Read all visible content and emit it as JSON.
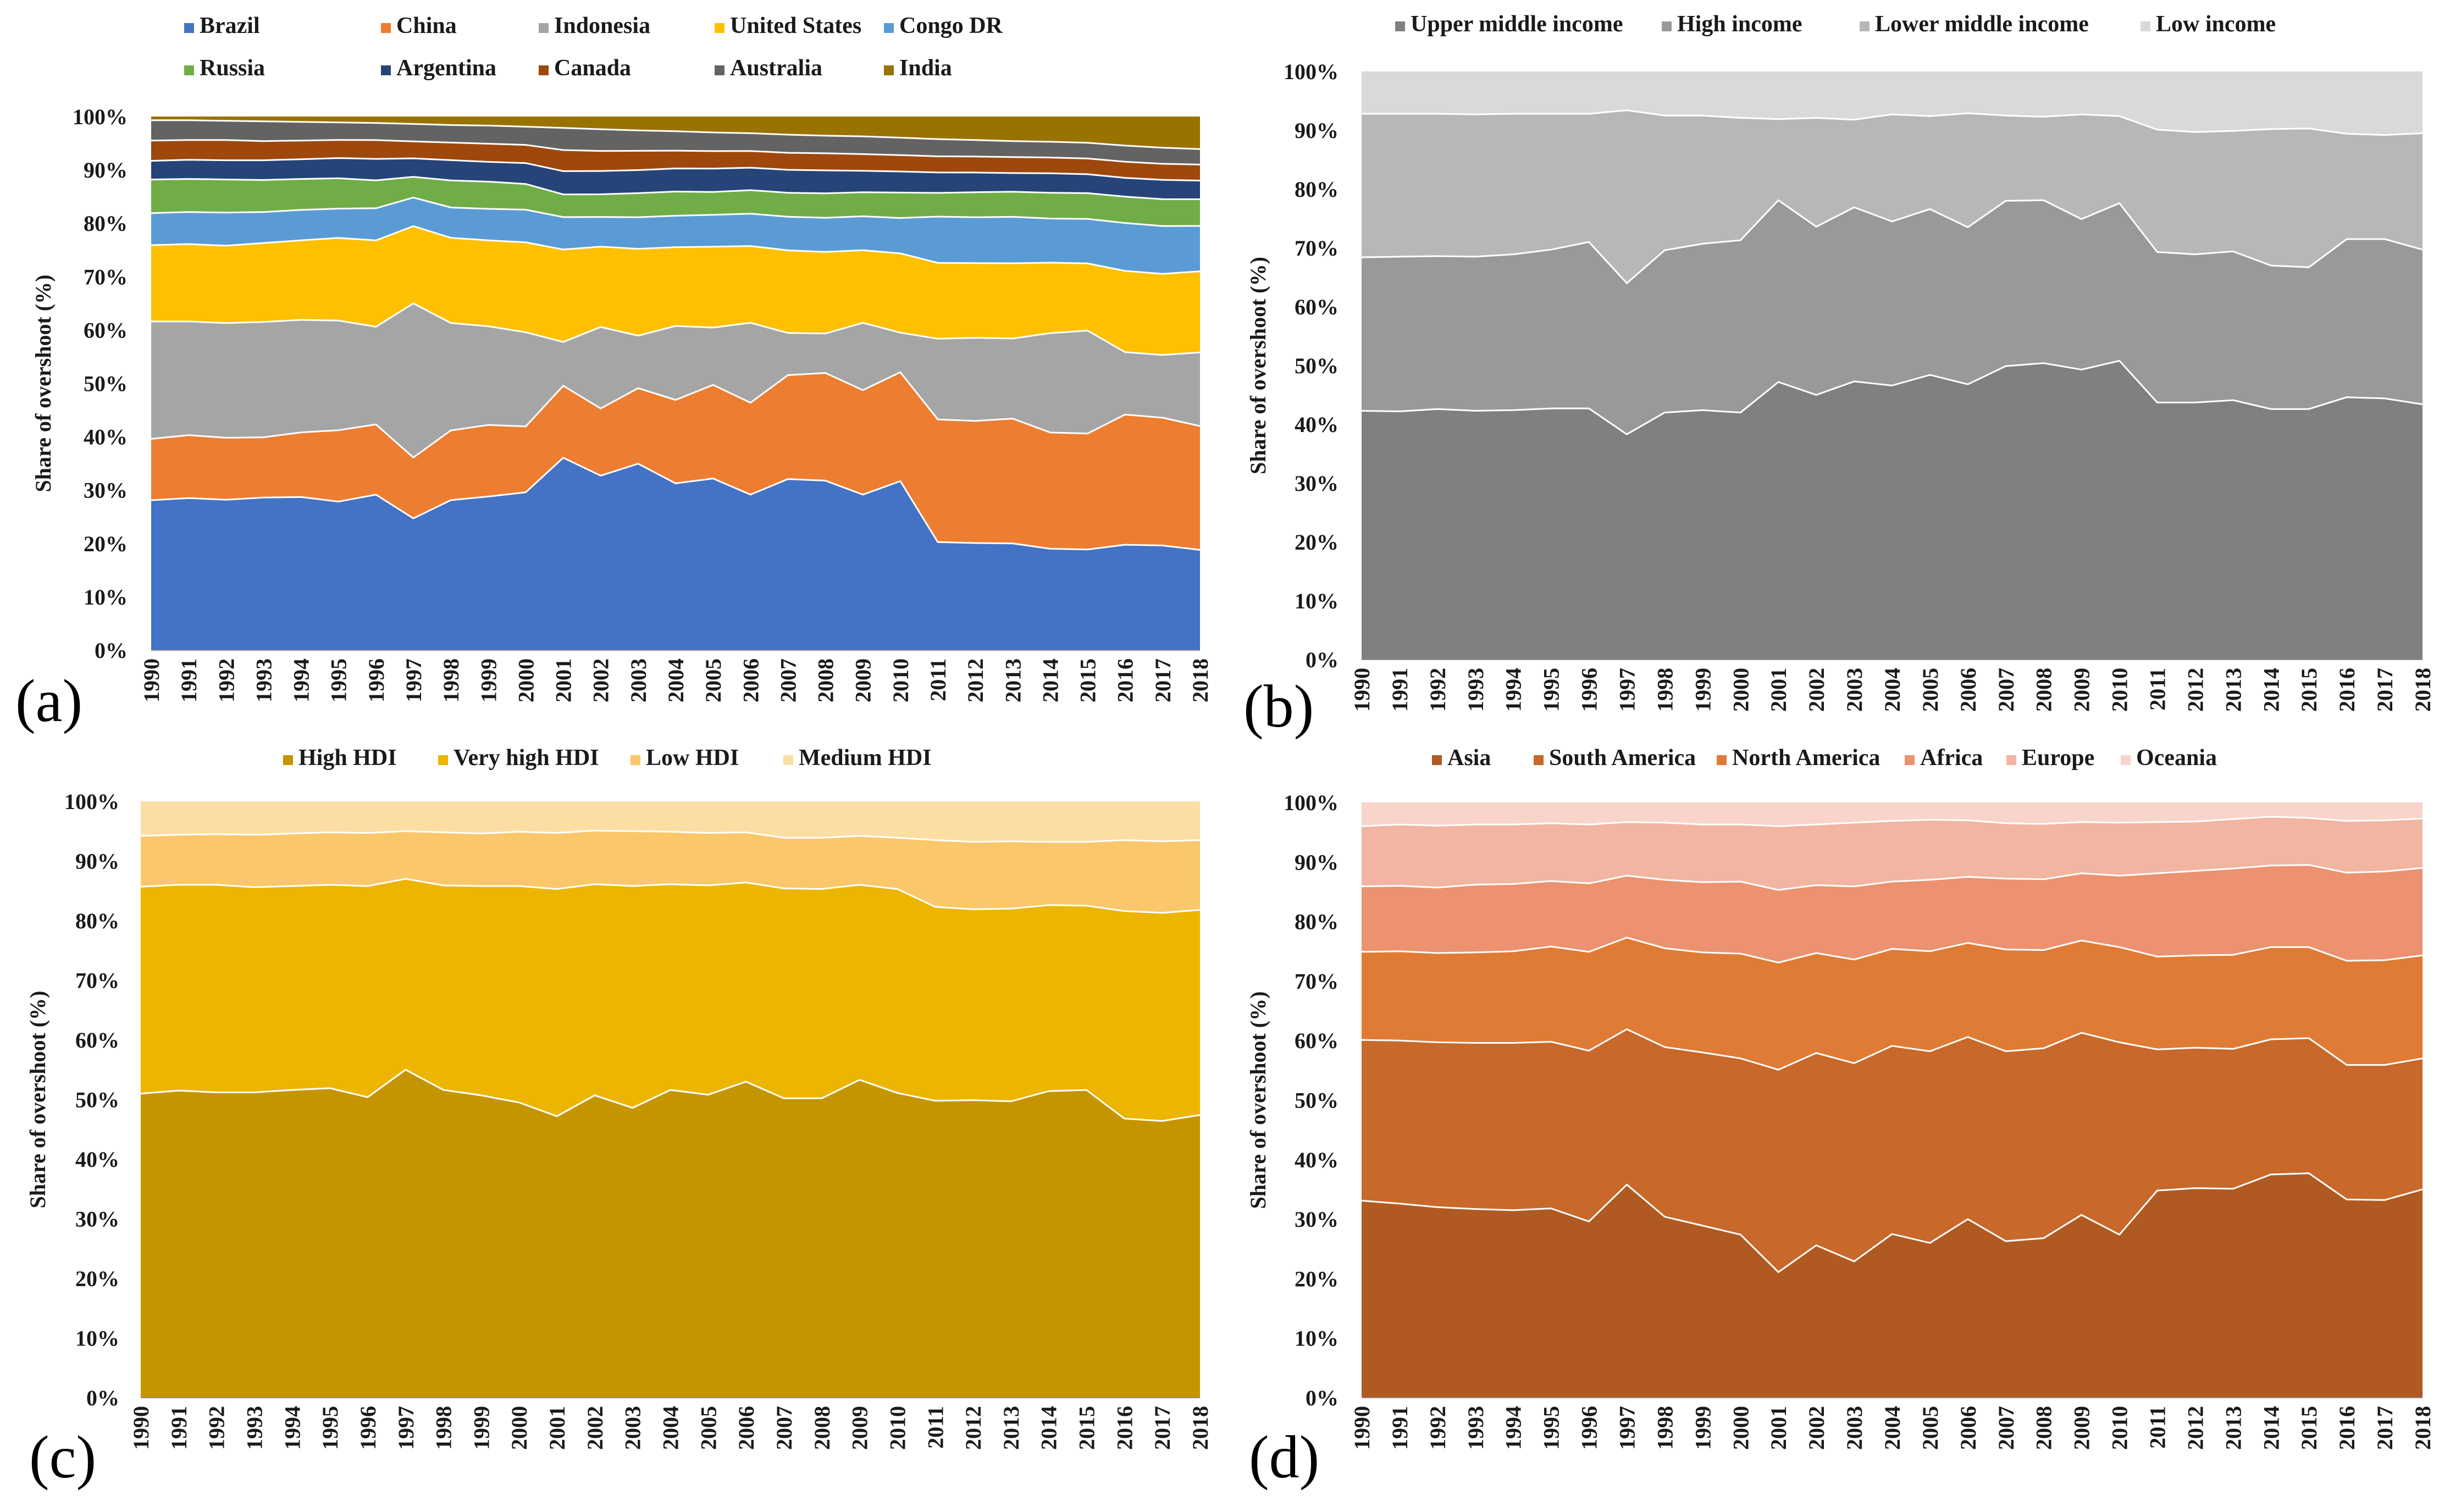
{
  "colors": {
    "divider": "#ffffff",
    "text": "#1a1a1a"
  },
  "chart_data": [
    {
      "id": "a",
      "type": "area",
      "stacked": true,
      "panel_label": "(a)",
      "title": "",
      "xlabel": "",
      "ylabel": "Share of overshoot (%)",
      "ylim": [
        0,
        100
      ],
      "yticks": [
        "0%",
        "10%",
        "20%",
        "30%",
        "40%",
        "50%",
        "60%",
        "70%",
        "80%",
        "90%",
        "100%"
      ],
      "x": [
        1990,
        1991,
        1992,
        1993,
        1994,
        1995,
        1996,
        1997,
        1998,
        1999,
        2000,
        2001,
        2002,
        2003,
        2004,
        2005,
        2006,
        2007,
        2008,
        2009,
        2010,
        2011,
        2012,
        2013,
        2014,
        2015,
        2016,
        2017,
        2018
      ],
      "legend_position": "top",
      "series": [
        {
          "name": "Brazil",
          "color": "#4472C4",
          "values": [
            28.1,
            28.5,
            28.2,
            28.6,
            28.7,
            27.9,
            29.0,
            24.9,
            28.2,
            28.8,
            29.5,
            35.6,
            33.0,
            34.8,
            31.8,
            32.3,
            29.8,
            32.1,
            31.8,
            29.8,
            32.0,
            20.1,
            20.1,
            20.0,
            19.3,
            19.2,
            19.6,
            19.5,
            18.8
          ]
        },
        {
          "name": "China",
          "color": "#ED7D31",
          "values": [
            11.5,
            11.8,
            11.6,
            11.3,
            12.1,
            13.4,
            13.1,
            11.5,
            13.1,
            13.4,
            12.3,
            13.3,
            12.7,
            14.1,
            15.9,
            17.6,
            17.6,
            19.5,
            20.2,
            20.0,
            20.6,
            22.8,
            22.9,
            23.4,
            22.1,
            22.1,
            24.2,
            23.8,
            23.2
          ]
        },
        {
          "name": "Indonesia",
          "color": "#A5A5A5",
          "values": [
            22.0,
            21.3,
            21.5,
            21.6,
            21.1,
            20.6,
            18.2,
            29.1,
            20.2,
            18.5,
            17.6,
            8.1,
            15.4,
            9.8,
            14.1,
            10.8,
            15.3,
            7.9,
            7.4,
            12.9,
            7.5,
            15.0,
            15.6,
            15.0,
            18.9,
            19.6,
            11.6,
            11.7,
            13.8
          ]
        },
        {
          "name": "United States",
          "color": "#FFC000",
          "values": [
            14.3,
            14.5,
            14.5,
            14.8,
            14.9,
            15.5,
            16.1,
            14.6,
            16.0,
            16.1,
            16.8,
            17.1,
            15.2,
            16.2,
            15.0,
            15.2,
            14.7,
            15.5,
            15.3,
            13.9,
            15.0,
            14.1,
            14.0,
            14.1,
            13.4,
            12.8,
            15.1,
            15.1,
            15.2
          ]
        },
        {
          "name": "Congo DR",
          "color": "#5B9BD5",
          "values": [
            6.0,
            6.0,
            6.2,
            5.8,
            5.7,
            5.5,
            6.0,
            5.4,
            5.7,
            5.9,
            6.1,
            6.0,
            5.6,
            5.9,
            6.0,
            6.0,
            6.2,
            6.3,
            6.4,
            6.5,
            6.7,
            8.6,
            8.6,
            8.7,
            8.4,
            8.5,
            8.9,
            8.9,
            8.5
          ]
        },
        {
          "name": "Russia",
          "color": "#70AD47",
          "values": [
            6.3,
            6.2,
            6.2,
            6.0,
            5.8,
            5.7,
            5.2,
            3.9,
            5.1,
            5.1,
            4.8,
            4.2,
            4.3,
            4.5,
            4.6,
            4.3,
            4.5,
            4.5,
            4.6,
            4.6,
            4.8,
            4.4,
            4.7,
            4.7,
            4.9,
            4.9,
            4.9,
            5.0,
            5.0
          ]
        },
        {
          "name": "Argentina",
          "color": "#264478",
          "values": [
            3.5,
            3.6,
            3.6,
            3.7,
            3.7,
            3.8,
            4.0,
            3.5,
            3.8,
            3.7,
            3.9,
            4.3,
            4.4,
            4.3,
            4.4,
            4.4,
            4.3,
            4.3,
            4.3,
            4.1,
            4.0,
            3.8,
            3.7,
            3.5,
            3.7,
            3.6,
            3.5,
            3.6,
            3.5
          ]
        },
        {
          "name": "Canada",
          "color": "#9E480E",
          "values": [
            3.8,
            3.7,
            3.8,
            3.6,
            3.5,
            3.4,
            3.5,
            3.2,
            3.3,
            3.4,
            3.4,
            3.9,
            3.8,
            3.6,
            3.4,
            3.3,
            3.2,
            3.2,
            3.2,
            3.2,
            3.1,
            3.0,
            3.0,
            3.0,
            3.0,
            3.0,
            3.0,
            3.0,
            3.0
          ]
        },
        {
          "name": "Australia",
          "color": "#636363",
          "values": [
            3.8,
            3.7,
            3.6,
            3.7,
            3.5,
            3.3,
            3.2,
            3.3,
            3.3,
            3.4,
            3.4,
            4.1,
            4.1,
            3.8,
            3.7,
            3.5,
            3.4,
            3.4,
            3.3,
            3.4,
            3.3,
            3.2,
            3.1,
            3.0,
            3.0,
            3.0,
            3.0,
            3.0,
            2.9
          ]
        },
        {
          "name": "India",
          "color": "#997300",
          "values": [
            0.7,
            0.7,
            0.8,
            0.9,
            1.0,
            1.1,
            1.2,
            1.4,
            1.6,
            1.7,
            1.9,
            2.1,
            2.4,
            2.6,
            2.8,
            3.0,
            3.2,
            3.4,
            3.6,
            3.8,
            4.0,
            4.2,
            4.4,
            4.6,
            4.8,
            5.0,
            5.4,
            5.8,
            6.1
          ]
        }
      ]
    },
    {
      "id": "b",
      "type": "area",
      "stacked": true,
      "panel_label": "(b)",
      "title": "",
      "xlabel": "",
      "ylabel": "Share of overshoot (%)",
      "ylim": [
        0,
        100
      ],
      "yticks": [
        "0%",
        "10%",
        "20%",
        "30%",
        "40%",
        "50%",
        "60%",
        "70%",
        "80%",
        "90%",
        "100%"
      ],
      "x": [
        1990,
        1991,
        1992,
        1993,
        1994,
        1995,
        1996,
        1997,
        1998,
        1999,
        2000,
        2001,
        2002,
        2003,
        2004,
        2005,
        2006,
        2007,
        2008,
        2009,
        2010,
        2011,
        2012,
        2013,
        2014,
        2015,
        2016,
        2017,
        2018
      ],
      "legend_position": "top",
      "series": [
        {
          "name": "Upper middle income",
          "color": "#808080",
          "values": [
            42.3,
            42.2,
            42.6,
            42.3,
            42.4,
            42.7,
            42.7,
            38.3,
            42.0,
            42.4,
            42.0,
            47.2,
            45.0,
            47.3,
            46.6,
            48.4,
            46.8,
            49.9,
            50.4,
            49.3,
            50.8,
            43.7,
            43.7,
            44.1,
            42.6,
            42.6,
            44.6,
            44.4,
            43.4
          ]
        },
        {
          "name": "High income",
          "color": "#999999",
          "values": [
            26.1,
            26.3,
            26.0,
            26.2,
            26.5,
            27.0,
            28.3,
            25.7,
            27.6,
            28.3,
            29.3,
            30.9,
            28.6,
            29.6,
            27.9,
            28.2,
            26.7,
            28.1,
            27.7,
            25.6,
            26.8,
            25.6,
            25.2,
            25.3,
            24.4,
            24.1,
            26.9,
            27.1,
            26.3
          ]
        },
        {
          "name": "Lower middle income",
          "color": "#B7B7B7",
          "values": [
            24.4,
            24.3,
            24.2,
            24.2,
            23.9,
            23.1,
            21.8,
            29.4,
            22.9,
            21.8,
            20.8,
            13.8,
            18.5,
            14.9,
            18.2,
            15.8,
            19.4,
            14.5,
            14.2,
            17.8,
            14.8,
            20.8,
            20.8,
            20.5,
            23.2,
            23.6,
            17.9,
            17.7,
            19.8
          ]
        },
        {
          "name": "Low income",
          "color": "#D9D9D9",
          "values": [
            7.2,
            7.2,
            7.2,
            7.3,
            7.2,
            7.2,
            7.2,
            6.6,
            7.5,
            7.5,
            7.9,
            8.1,
            7.9,
            8.2,
            7.3,
            7.6,
            7.1,
            7.5,
            7.7,
            7.3,
            7.6,
            9.9,
            10.3,
            10.1,
            9.8,
            9.7,
            10.6,
            10.8,
            10.5
          ]
        }
      ]
    },
    {
      "id": "c",
      "type": "area",
      "stacked": true,
      "panel_label": "(c)",
      "title": "",
      "xlabel": "",
      "ylabel": "Share of overshoot (%)",
      "ylim": [
        0,
        100
      ],
      "yticks": [
        "0%",
        "10%",
        "20%",
        "30%",
        "40%",
        "50%",
        "60%",
        "70%",
        "80%",
        "90%",
        "100%"
      ],
      "x": [
        1990,
        1991,
        1992,
        1993,
        1994,
        1995,
        1996,
        1997,
        1998,
        1999,
        2000,
        2001,
        2002,
        2003,
        2004,
        2005,
        2006,
        2007,
        2008,
        2009,
        2010,
        2011,
        2012,
        2013,
        2014,
        2015,
        2016,
        2017,
        2018
      ],
      "legend_position": "top",
      "series": [
        {
          "name": "High HDI",
          "color": "#C59500",
          "values": [
            51.0,
            51.5,
            51.2,
            51.2,
            51.6,
            51.9,
            50.4,
            55.0,
            51.6,
            50.7,
            49.5,
            47.2,
            50.7,
            48.6,
            51.6,
            50.8,
            53.0,
            50.2,
            50.2,
            53.3,
            51.1,
            49.8,
            49.9,
            49.7,
            51.4,
            51.6,
            46.8,
            46.4,
            47.4
          ]
        },
        {
          "name": "Very high HDI",
          "color": "#ECB500",
          "values": [
            34.7,
            34.5,
            34.8,
            34.4,
            34.2,
            34.1,
            35.4,
            32.0,
            34.3,
            35.1,
            36.3,
            38.1,
            35.4,
            37.2,
            34.5,
            35.1,
            33.4,
            35.2,
            35.1,
            32.7,
            34.2,
            32.5,
            32.0,
            32.3,
            31.2,
            30.9,
            34.8,
            34.9,
            34.4
          ]
        },
        {
          "name": "Low HDI",
          "color": "#FAC76A",
          "values": [
            8.5,
            8.4,
            8.5,
            8.8,
            8.8,
            8.8,
            8.9,
            8.0,
            8.9,
            8.8,
            9.1,
            9.4,
            9.0,
            9.2,
            8.8,
            8.8,
            8.4,
            8.5,
            8.6,
            8.2,
            8.6,
            11.2,
            11.3,
            11.3,
            10.6,
            10.7,
            11.9,
            12.0,
            11.7
          ]
        },
        {
          "name": "Medium HDI",
          "color": "#FCDDA4",
          "values": [
            5.8,
            5.6,
            5.5,
            5.6,
            5.4,
            5.2,
            5.3,
            5.0,
            5.2,
            5.4,
            5.1,
            5.3,
            4.9,
            5.0,
            5.1,
            5.3,
            5.2,
            6.1,
            6.1,
            5.8,
            6.1,
            6.5,
            6.8,
            6.7,
            6.8,
            6.8,
            6.5,
            6.7,
            6.5
          ]
        }
      ]
    },
    {
      "id": "d",
      "type": "area",
      "stacked": true,
      "panel_label": "(d)",
      "title": "",
      "xlabel": "",
      "ylabel": "Share of overshoot (%)",
      "ylim": [
        0,
        100
      ],
      "yticks": [
        "0%",
        "10%",
        "20%",
        "30%",
        "40%",
        "50%",
        "60%",
        "70%",
        "80%",
        "90%",
        "100%"
      ],
      "x": [
        1990,
        1991,
        1992,
        1993,
        1994,
        1995,
        1996,
        1997,
        1998,
        1999,
        2000,
        2001,
        2002,
        2003,
        2004,
        2005,
        2006,
        2007,
        2008,
        2009,
        2010,
        2011,
        2012,
        2013,
        2014,
        2015,
        2016,
        2017,
        2018
      ],
      "legend_position": "top",
      "series": [
        {
          "name": "Asia",
          "color": "#B05A22",
          "values": [
            33.1,
            32.6,
            32.0,
            31.7,
            31.5,
            31.8,
            29.6,
            35.8,
            30.4,
            28.9,
            27.4,
            21.1,
            25.6,
            22.9,
            27.5,
            26.0,
            30.0,
            26.3,
            26.8,
            30.7,
            27.4,
            34.8,
            35.2,
            35.1,
            37.5,
            37.7,
            33.3,
            33.2,
            35.0
          ]
        },
        {
          "name": "South America",
          "color": "#C8682A",
          "values": [
            27.0,
            27.4,
            27.7,
            27.9,
            28.1,
            28.0,
            28.7,
            26.1,
            28.5,
            29.1,
            29.6,
            34.0,
            32.3,
            33.3,
            31.6,
            32.2,
            30.6,
            31.9,
            31.9,
            30.6,
            32.3,
            23.7,
            23.6,
            23.5,
            22.7,
            22.7,
            22.6,
            22.7,
            22.0
          ]
        },
        {
          "name": "North America",
          "color": "#E07B35",
          "values": [
            14.8,
            15.0,
            15.0,
            15.2,
            15.4,
            16.0,
            16.6,
            15.4,
            16.6,
            16.8,
            17.6,
            18.0,
            16.8,
            17.4,
            16.3,
            16.8,
            15.8,
            17.1,
            16.5,
            15.5,
            16.0,
            15.6,
            15.5,
            15.8,
            15.5,
            15.3,
            17.5,
            17.6,
            17.3
          ]
        },
        {
          "name": "Africa",
          "color": "#EC9270",
          "values": [
            11.0,
            11.0,
            11.0,
            11.4,
            11.3,
            11.0,
            11.5,
            10.4,
            11.5,
            11.8,
            12.1,
            12.2,
            11.4,
            12.3,
            11.3,
            12.0,
            11.1,
            11.9,
            11.9,
            11.3,
            12.0,
            14.0,
            14.2,
            14.5,
            13.7,
            13.8,
            14.8,
            14.9,
            14.7
          ]
        },
        {
          "name": "Europe",
          "color": "#F2B5A1",
          "values": [
            10.1,
            10.3,
            10.4,
            10.1,
            10.0,
            9.7,
            9.9,
            9.0,
            9.6,
            9.7,
            9.6,
            10.7,
            10.2,
            10.7,
            10.2,
            10.1,
            9.5,
            9.3,
            9.3,
            8.6,
            8.9,
            8.6,
            8.3,
            8.3,
            8.2,
            7.9,
            8.7,
            8.6,
            8.3
          ]
        },
        {
          "name": "Oceania",
          "color": "#F8D4CB",
          "values": [
            4.0,
            3.7,
            3.9,
            3.7,
            3.7,
            3.5,
            3.7,
            3.3,
            3.4,
            3.7,
            3.7,
            4.0,
            3.7,
            3.4,
            3.1,
            2.9,
            3.0,
            3.5,
            3.6,
            3.3,
            3.4,
            3.3,
            3.2,
            2.8,
            2.4,
            2.6,
            3.1,
            3.0,
            2.7
          ]
        }
      ]
    }
  ]
}
